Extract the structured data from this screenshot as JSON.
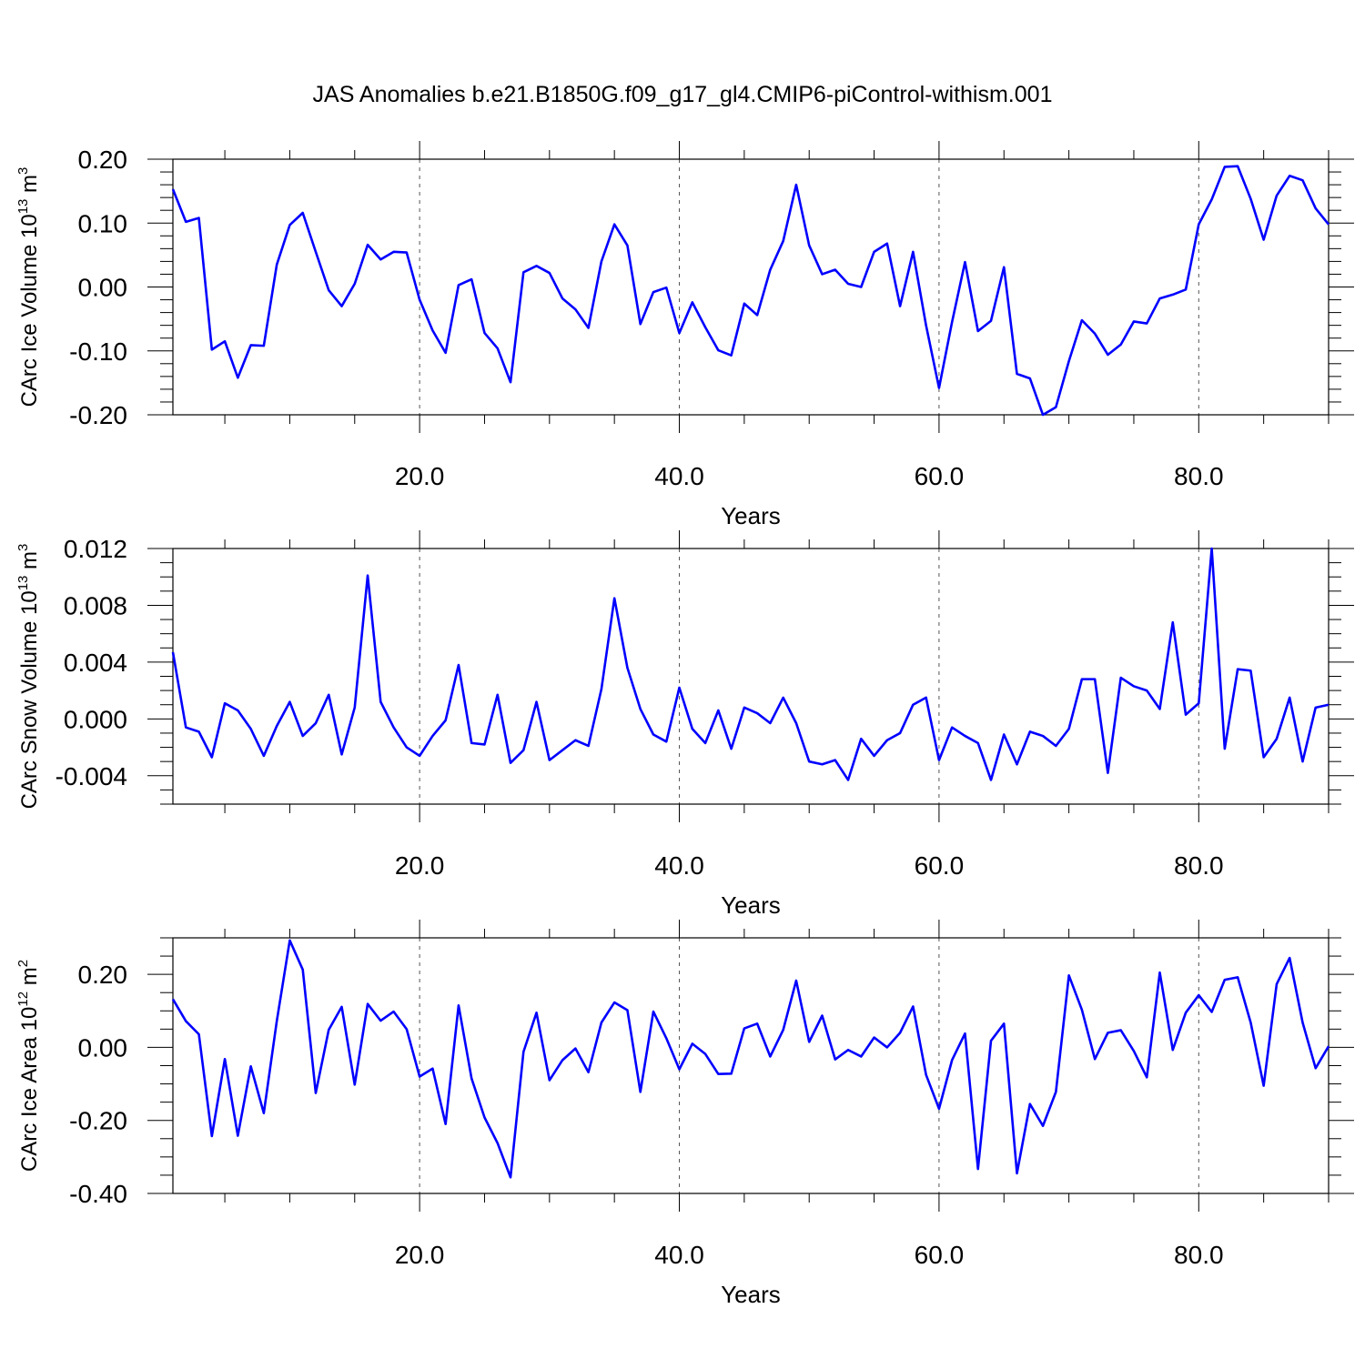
{
  "title": "JAS Anomalies b.e21.B1850G.f09_g17_gl4.CMIP6-piControl-withism.001",
  "line_color": "#0000ff",
  "chart_data": [
    {
      "type": "line",
      "ylabel": "CArc Ice Volume 10",
      "ylabel_sup": "13",
      "ylabel_unit": "m",
      "ylabel_unit_sup": "3",
      "xlabel": "Years",
      "xlim": [
        1,
        90
      ],
      "ylim": [
        -0.2,
        0.2
      ],
      "xticks": [
        "20.0",
        "40.0",
        "60.0",
        "80.0"
      ],
      "yticks": [
        "0.20",
        "0.10",
        "0.00",
        "-0.10",
        "-0.20"
      ],
      "grid": "dashed vertical lines at major x ticks",
      "x_start": 1,
      "values": [
        0.153,
        0.102,
        0.108,
        -0.098,
        -0.085,
        -0.142,
        -0.091,
        -0.092,
        0.035,
        0.097,
        0.116,
        0.055,
        -0.005,
        -0.03,
        0.005,
        0.066,
        0.043,
        0.055,
        0.054,
        -0.02,
        -0.068,
        -0.103,
        0.003,
        0.012,
        -0.072,
        -0.096,
        -0.149,
        0.023,
        0.033,
        0.022,
        -0.018,
        -0.035,
        -0.064,
        0.04,
        0.098,
        0.065,
        -0.058,
        -0.008,
        -0.001,
        -0.072,
        -0.024,
        -0.063,
        -0.099,
        -0.107,
        -0.026,
        -0.044,
        0.027,
        0.072,
        0.16,
        0.065,
        0.02,
        0.027,
        0.005,
        0.0,
        0.055,
        0.068,
        -0.03,
        0.055,
        -0.06,
        -0.158,
        -0.055,
        0.039,
        -0.069,
        -0.053,
        0.031,
        -0.136,
        -0.143,
        -0.2,
        -0.188,
        -0.116,
        -0.052,
        -0.073,
        -0.106,
        -0.09,
        -0.054,
        -0.057,
        -0.018,
        -0.012,
        -0.004,
        0.098,
        0.137,
        0.188,
        0.189,
        0.138,
        0.074,
        0.143,
        0.174,
        0.167,
        0.123,
        0.098
      ]
    },
    {
      "type": "line",
      "ylabel": "CArc Snow Volume 10",
      "ylabel_sup": "13",
      "ylabel_unit": "m",
      "ylabel_unit_sup": "3",
      "xlabel": "Years",
      "xlim": [
        1,
        90
      ],
      "ylim": [
        -0.006,
        0.012
      ],
      "xticks": [
        "20.0",
        "40.0",
        "60.0",
        "80.0"
      ],
      "yticks": [
        "0.012",
        "0.008",
        "0.004",
        "0.000",
        "-0.004"
      ],
      "grid": "dashed vertical lines at major x ticks",
      "x_start": 1,
      "values": [
        0.0047,
        -0.0006,
        -0.0009,
        -0.0027,
        0.0011,
        0.0006,
        -0.0007,
        -0.0026,
        -0.0005,
        0.0012,
        -0.0012,
        -0.0003,
        0.0017,
        -0.0025,
        0.0008,
        0.0101,
        0.0012,
        -0.0006,
        -0.002,
        -0.0026,
        -0.0012,
        -0.0001,
        0.0038,
        -0.0017,
        -0.0018,
        0.0017,
        -0.0031,
        -0.0022,
        0.0012,
        -0.0029,
        -0.0022,
        -0.0015,
        -0.0019,
        0.0021,
        0.0085,
        0.0036,
        0.0007,
        -0.0011,
        -0.0016,
        0.0022,
        -0.0007,
        -0.0017,
        0.0006,
        -0.0021,
        0.0008,
        0.0004,
        -0.0003,
        0.0015,
        -0.0003,
        -0.003,
        -0.0032,
        -0.0029,
        -0.0043,
        -0.0014,
        -0.0026,
        -0.0015,
        -0.001,
        0.001,
        0.0015,
        -0.0029,
        -0.0006,
        -0.0012,
        -0.0017,
        -0.0043,
        -0.0011,
        -0.0032,
        -0.0009,
        -0.0012,
        -0.0019,
        -0.0007,
        0.0028,
        0.0028,
        -0.0038,
        0.0029,
        0.0023,
        0.002,
        0.0007,
        0.0068,
        0.0003,
        0.0011,
        0.012,
        -0.0021,
        0.0035,
        0.0034,
        -0.0027,
        -0.0014,
        0.0015,
        -0.003,
        0.0008,
        0.001
      ]
    },
    {
      "type": "line",
      "ylabel": "CArc Ice Area 10",
      "ylabel_sup": "12",
      "ylabel_unit": "m",
      "ylabel_unit_sup": "2",
      "xlabel": "Years",
      "xlim": [
        1,
        90
      ],
      "ylim": [
        -0.4,
        0.3
      ],
      "xticks": [
        "20.0",
        "40.0",
        "60.0",
        "80.0"
      ],
      "yticks": [
        "0.20",
        "0.00",
        "-0.20",
        "-0.40"
      ],
      "grid": "dashed vertical lines at major x ticks",
      "x_start": 1,
      "values": [
        0.132,
        0.072,
        0.036,
        -0.243,
        -0.032,
        -0.242,
        -0.052,
        -0.18,
        0.072,
        0.293,
        0.213,
        -0.125,
        0.048,
        0.111,
        -0.102,
        0.119,
        0.073,
        0.098,
        0.05,
        -0.08,
        -0.058,
        -0.21,
        0.115,
        -0.085,
        -0.192,
        -0.262,
        -0.356,
        -0.012,
        0.095,
        -0.09,
        -0.035,
        -0.003,
        -0.068,
        0.068,
        0.123,
        0.102,
        -0.122,
        0.098,
        0.025,
        -0.06,
        0.01,
        -0.018,
        -0.073,
        -0.072,
        0.052,
        0.065,
        -0.025,
        0.048,
        0.183,
        0.015,
        0.087,
        -0.033,
        -0.007,
        -0.025,
        0.027,
        0.0,
        0.04,
        0.112,
        -0.075,
        -0.168,
        -0.035,
        0.038,
        -0.333,
        0.018,
        0.065,
        -0.345,
        -0.155,
        -0.215,
        -0.122,
        0.197,
        0.103,
        -0.032,
        0.04,
        0.047,
        -0.01,
        -0.082,
        0.205,
        -0.007,
        0.095,
        0.143,
        0.097,
        0.185,
        0.192,
        0.068,
        -0.105,
        0.173,
        0.245,
        0.068,
        -0.057,
        0.003
      ]
    }
  ]
}
